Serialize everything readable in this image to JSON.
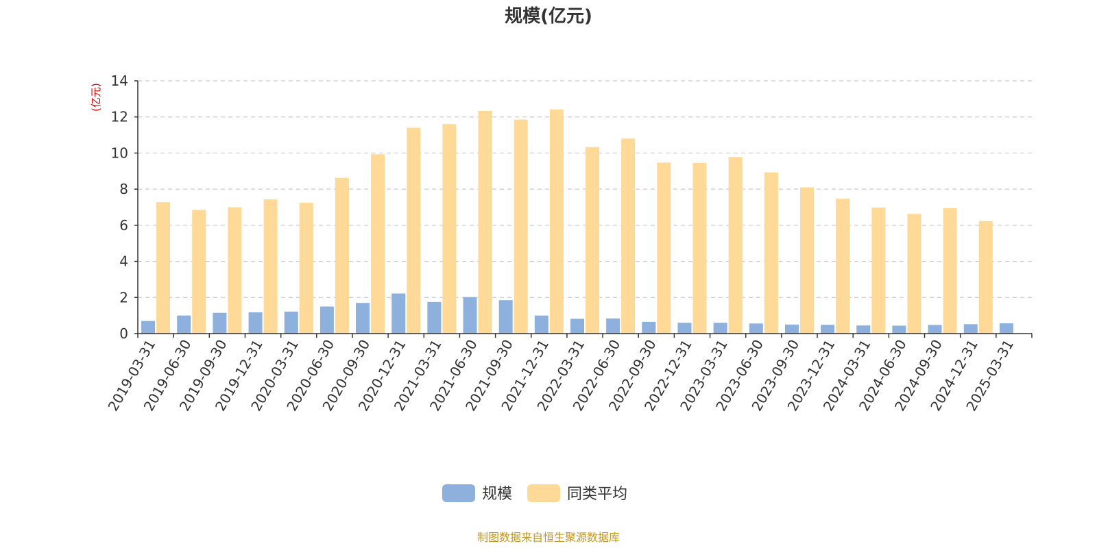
{
  "chart_data": {
    "type": "bar",
    "title": "规模(亿元)",
    "ylabel": "(亿元)",
    "xlabel": "",
    "ylim": [
      0,
      14
    ],
    "yticks": [
      0,
      2,
      4,
      6,
      8,
      10,
      12,
      14
    ],
    "grid": true,
    "legend_position": "bottom-center",
    "categories": [
      "2019-03-31",
      "2019-06-30",
      "2019-09-30",
      "2019-12-31",
      "2020-03-31",
      "2020-06-30",
      "2020-09-30",
      "2020-12-31",
      "2021-03-31",
      "2021-06-30",
      "2021-09-30",
      "2021-12-31",
      "2022-03-31",
      "2022-06-30",
      "2022-09-30",
      "2022-12-31",
      "2023-03-31",
      "2023-06-30",
      "2023-09-30",
      "2023-12-31",
      "2024-03-31",
      "2024-06-30",
      "2024-09-30",
      "2024-12-31",
      "2025-03-31"
    ],
    "series": [
      {
        "name": "规模",
        "color": "#8eb0dd",
        "values": [
          0.7,
          1.0,
          1.15,
          1.18,
          1.22,
          1.5,
          1.7,
          2.22,
          1.75,
          2.02,
          1.85,
          1.0,
          0.82,
          0.84,
          0.65,
          0.6,
          0.6,
          0.56,
          0.5,
          0.49,
          0.45,
          0.44,
          0.48,
          0.52,
          0.57
        ]
      },
      {
        "name": "同类平均",
        "color": "#ffd998",
        "values": [
          7.28,
          6.85,
          7.0,
          7.43,
          7.25,
          8.62,
          9.93,
          11.4,
          11.6,
          12.33,
          11.85,
          12.42,
          10.33,
          10.8,
          9.47,
          9.45,
          9.78,
          8.93,
          8.1,
          7.47,
          6.98,
          6.63,
          6.95,
          6.23,
          null
        ]
      }
    ],
    "source": "制图数据来自恒生聚源数据库"
  }
}
